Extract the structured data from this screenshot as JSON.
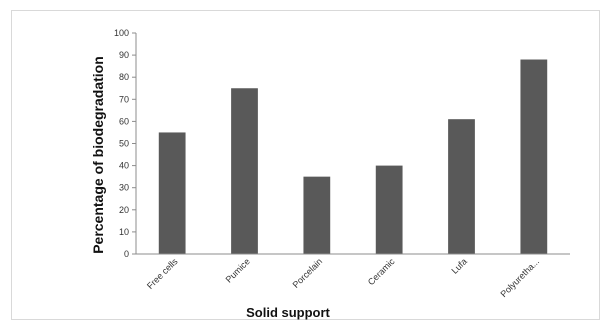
{
  "chart_data": {
    "type": "bar",
    "categories": [
      "Free cells",
      "Pumice",
      "Porcelain",
      "Ceramic",
      "Lufa",
      "Polyuretha..."
    ],
    "values": [
      55,
      75,
      35,
      40,
      61,
      88
    ],
    "title": "",
    "xlabel": "Solid support",
    "ylabel": "Percentage of biodegradation",
    "ylim": [
      0,
      100
    ],
    "yticks": [
      0,
      10,
      20,
      30,
      40,
      50,
      60,
      70,
      80,
      90,
      100
    ],
    "grid": false,
    "legend": "none",
    "bar_color": "#595959",
    "axis_color": "#8c8c8c"
  }
}
